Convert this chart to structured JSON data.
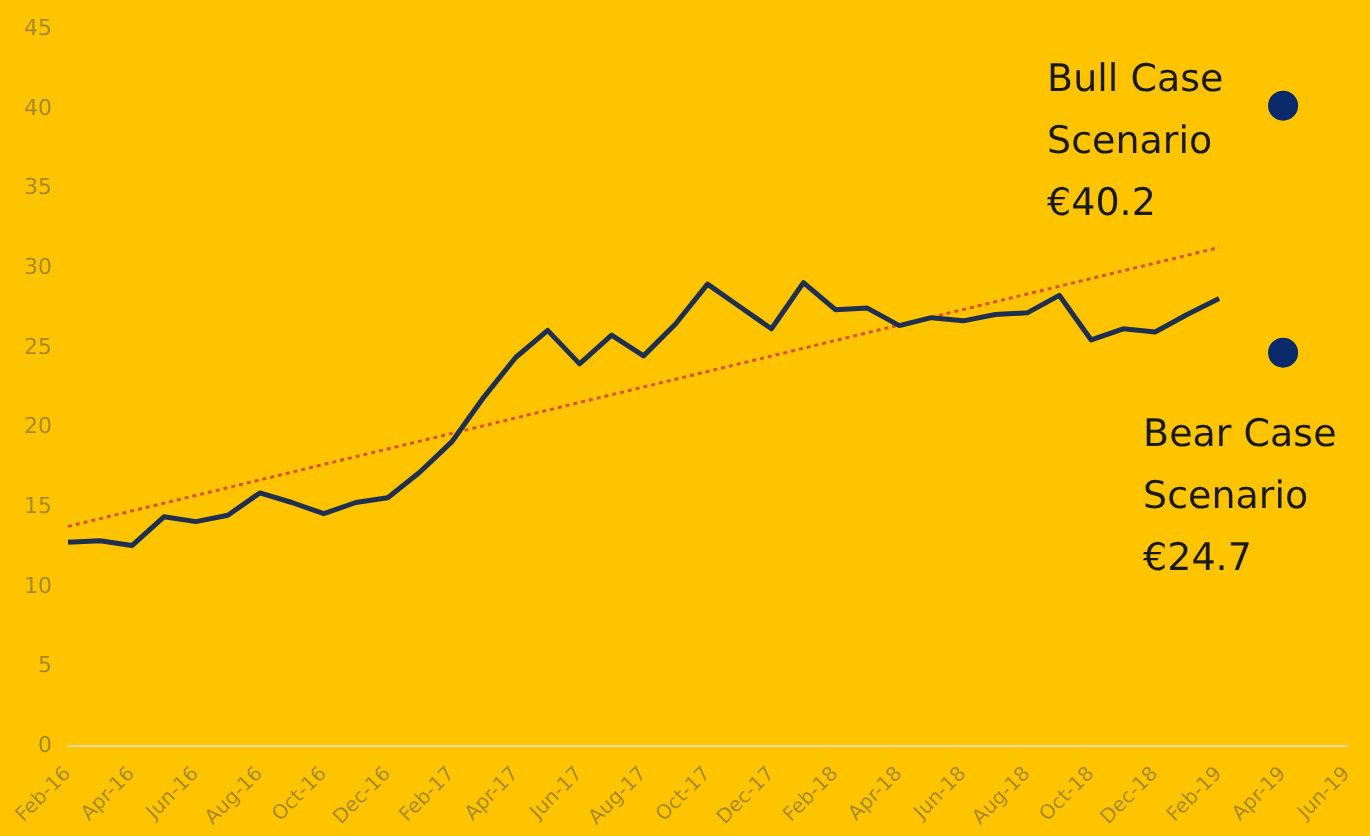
{
  "chart_data": {
    "type": "line",
    "categories": [
      "Feb-16",
      null,
      "Apr-16",
      null,
      "Jun-16",
      null,
      "Aug-16",
      null,
      "Oct-16",
      null,
      "Dec-16",
      null,
      "Feb-17",
      null,
      "Apr-17",
      null,
      "Jun-17",
      null,
      "Aug-17",
      null,
      "Oct-17",
      null,
      "Dec-17",
      null,
      "Feb-18",
      null,
      "Apr-18",
      null,
      "Jun-18",
      null,
      "Aug-18",
      null,
      "Oct-18",
      null,
      "Dec-18",
      null,
      "Feb-19",
      null,
      "Apr-19",
      null,
      "Jun-19"
    ],
    "series": [
      {
        "color": "#1f2f4f",
        "values": [
          12.8,
          12.9,
          12.6,
          14.4,
          14.1,
          14.5,
          15.9,
          15.3,
          14.6,
          15.3,
          15.6,
          17.2,
          19.1,
          21.9,
          24.4,
          26.1,
          24.0,
          25.8,
          24.5,
          26.5,
          29.0,
          27.6,
          26.2,
          29.1,
          27.4,
          27.5,
          26.4,
          26.9,
          26.7,
          27.1,
          27.2,
          28.3,
          25.5,
          26.2,
          26.0,
          27.1,
          28.1,
          null,
          null,
          null,
          null
        ]
      },
      {
        "type": "line",
        "color": "#e0502a",
        "line_style": "dotted",
        "x": [
          "Feb-16",
          "Feb-19"
        ],
        "values": [
          13.8,
          31.3
        ]
      },
      {
        "type": "scatter",
        "color": "#0a2a6b",
        "marker": "circle",
        "x": [
          "Apr-19",
          "Apr-19"
        ],
        "values": [
          40.2,
          24.7
        ]
      }
    ],
    "ylim": [
      0,
      45
    ],
    "yticks": [
      0,
      5,
      10,
      15,
      20,
      25,
      30,
      35,
      40,
      45
    ],
    "grid": false,
    "legend": false,
    "annotations": [
      {
        "text": "Bull Case\nScenario\n€40.2",
        "x": "Apr-19",
        "y": 40.2
      },
      {
        "text": "Bear Case\nScenario\n€24.7",
        "x": "Apr-19",
        "y": 24.7
      }
    ]
  }
}
